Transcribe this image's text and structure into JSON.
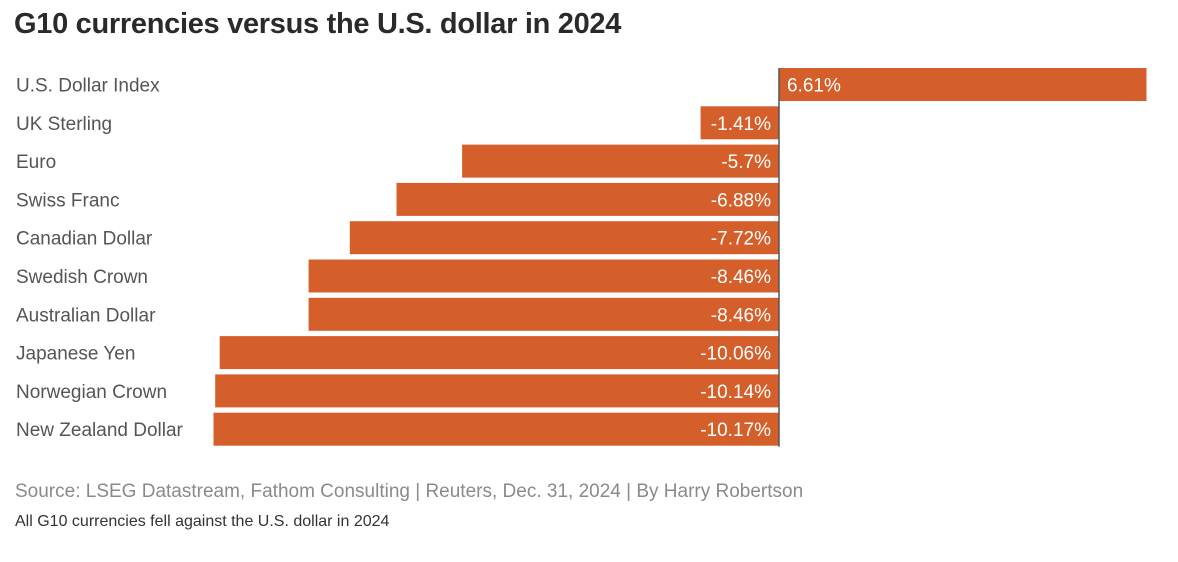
{
  "title": "G10 currencies versus the U.S. dollar in 2024",
  "source": "Source: LSEG Datastream, Fathom Consulting | Reuters, Dec. 31, 2024 | By Harry Robertson",
  "note": "All G10 currencies fell against the U.S. dollar in 2024",
  "colors": {
    "bar": "#d45f2b",
    "axis": "#555555",
    "background": "#ffffff"
  },
  "chart_data": {
    "type": "bar",
    "orientation": "horizontal",
    "title": "G10 currencies versus the U.S. dollar in 2024",
    "unit": "%",
    "categories": [
      "U.S. Dollar Index",
      "UK Sterling",
      "Euro",
      "Swiss Franc",
      "Canadian Dollar",
      "Swedish Crown",
      "Australian Dollar",
      "Japanese Yen",
      "Norwegian Crown",
      "New Zealand Dollar"
    ],
    "values": [
      6.61,
      -1.41,
      -5.7,
      -6.88,
      -7.72,
      -8.46,
      -8.46,
      -10.06,
      -10.14,
      -10.17
    ],
    "labels": [
      "6.61%",
      "-1.41%",
      "-5.7%",
      "-6.88%",
      "-7.72%",
      "-8.46%",
      "-8.46%",
      "-10.06%",
      "-10.14%",
      "-10.17%"
    ],
    "xlim": [
      -10.17,
      6.61
    ],
    "grid": false,
    "legend": "none"
  }
}
